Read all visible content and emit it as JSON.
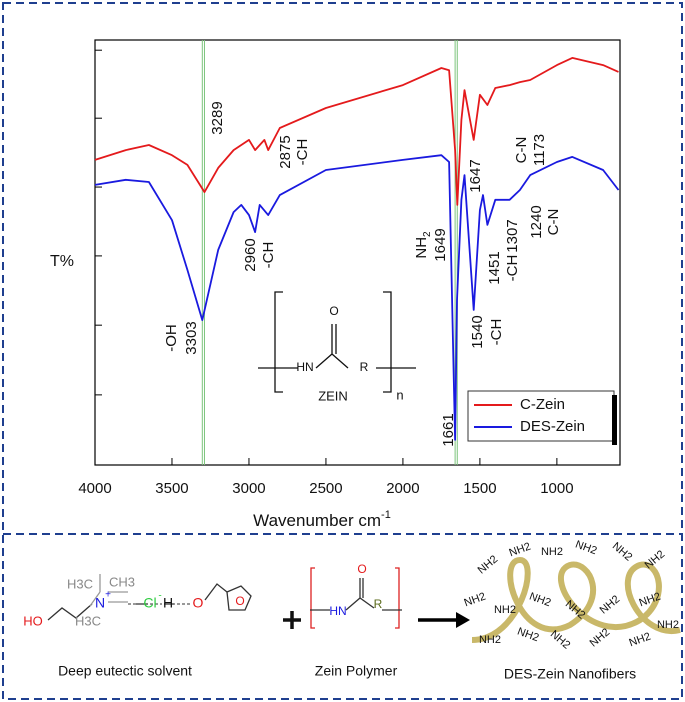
{
  "chart_data": {
    "type": "line",
    "xlabel": "Wavenumber cm",
    "xlabel_sup": "-1",
    "ylabel": "T%",
    "xlim": [
      4000,
      590
    ],
    "ylim": [
      0,
      100
    ],
    "xticks": [
      4000,
      3500,
      3000,
      2500,
      2000,
      1500,
      1000
    ],
    "yticks": [
      16.5,
      32.9,
      49.2,
      65.4,
      81.6,
      97.6
    ],
    "reference_lines": [
      3303,
      3289,
      1661,
      1647
    ],
    "legend": "lower right",
    "series": [
      {
        "name": "C-Zein",
        "color": "#e41a1c",
        "x": [
          4000,
          3800,
          3650,
          3500,
          3400,
          3289,
          3200,
          3100,
          3000,
          2960,
          2900,
          2875,
          2800,
          2500,
          2000,
          1750,
          1700,
          1661,
          1647,
          1620,
          1600,
          1540,
          1500,
          1451,
          1400,
          1307,
          1240,
          1173,
          1000,
          900,
          700,
          600
        ],
        "values": [
          71.8,
          74.1,
          75.3,
          72.9,
          70.6,
          64.2,
          69.9,
          74.1,
          76.5,
          74.1,
          76.5,
          74.1,
          79.3,
          84.0,
          89.4,
          93.4,
          92.9,
          74.1,
          61.2,
          81.2,
          88.2,
          76.5,
          87.1,
          84.7,
          88.7,
          89.4,
          90.1,
          90.6,
          94.1,
          95.8,
          94.1,
          92.5
        ]
      },
      {
        "name": "DES-Zein",
        "color": "#1a1adf",
        "x": [
          4000,
          3800,
          3650,
          3500,
          3400,
          3303,
          3200,
          3100,
          3050,
          3000,
          2960,
          2930,
          2875,
          2800,
          2500,
          2000,
          1750,
          1700,
          1661,
          1649,
          1620,
          1600,
          1540,
          1500,
          1480,
          1451,
          1400,
          1307,
          1240,
          1173,
          1000,
          900,
          700,
          600
        ],
        "values": [
          65.9,
          67.1,
          66.6,
          57.6,
          45.9,
          34.1,
          50.6,
          59.5,
          61.2,
          58.8,
          54.8,
          61.2,
          58.8,
          63.5,
          69.4,
          71.8,
          72.9,
          71.3,
          5.9,
          38.8,
          62.4,
          68.2,
          36.5,
          60.0,
          63.5,
          56.5,
          62.4,
          62.4,
          64.7,
          68.2,
          71.3,
          72.5,
          69.4,
          64.7
        ]
      }
    ],
    "annotations": [
      [
        "3289"
      ],
      [
        "2875",
        "-CH"
      ],
      [
        "-OH",
        "3303"
      ],
      [
        "2960",
        "-CH"
      ],
      [
        "NH",
        "1649"
      ],
      [
        "1647"
      ],
      [
        "1661"
      ],
      [
        "1540",
        "-CH"
      ],
      [
        "1451",
        "-CH"
      ],
      [
        "1307"
      ],
      [
        "1240",
        "C-N"
      ],
      [
        "C-N",
        "1173"
      ]
    ],
    "subscript": "2",
    "inset": {
      "o": "O",
      "hn": "HN",
      "r": "R",
      "name": "ZEIN",
      "n": "n"
    }
  },
  "scheme": {
    "solvent": {
      "caption": "Deep eutectic solvent",
      "ho": "HO",
      "n": "N",
      "plus": "+",
      "h3c_top": "H3C",
      "ch3": "CH3",
      "h3c_bottom": "H3C",
      "cl": "Cl",
      "minus": "-",
      "h": "H",
      "o_minus": "O",
      "o_ring": "O"
    },
    "polymer": {
      "caption": "Zein Polymer",
      "hn": "HN",
      "o": "O",
      "r": "R"
    },
    "fibers": {
      "caption": "DES-Zein Nanofibers",
      "label": "NH2"
    }
  }
}
